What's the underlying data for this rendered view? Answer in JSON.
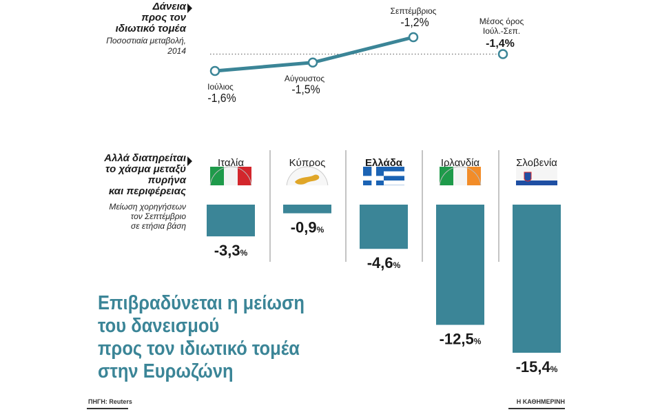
{
  "line_panel": {
    "title_lines": [
      "Δάνεια",
      "προς τον",
      "ιδιωτικό τομέα"
    ],
    "subtitle_lines": [
      "Ποσοστιαία μεταβολή,",
      "2014"
    ]
  },
  "bar_panel": {
    "title_lines": [
      "Αλλά διατηρείται",
      "το χάσμα μεταξύ",
      "πυρήνα",
      "και περιφέρειας"
    ],
    "subtitle_lines": [
      "Μείωση χορηγήσεων",
      "τον Σεπτέμβριο",
      "σε ετήσια βάση"
    ]
  },
  "headline_lines": [
    "Επιβραδύνεται η μείωση",
    "του δανεισμού",
    "προς τον ιδιωτικό τομέα",
    "στην Ευρωζώνη"
  ],
  "footer": {
    "source": "ΠΗΓΗ: Reuters",
    "publisher": "Η ΚΑΘΗΜΕΡΙΝΗ"
  },
  "colors": {
    "accent": "#3b8597",
    "text": "#1a1a1a"
  },
  "chart_data": [
    {
      "type": "line",
      "categories": [
        "Ιούλιος",
        "Αύγουστος",
        "Σεπτέμβριος"
      ],
      "values": [
        -1.6,
        -1.5,
        -1.2
      ],
      "value_labels": [
        "-1,6%",
        "-1,5%",
        "-1,2%"
      ],
      "reference": {
        "label_lines": [
          "Μέσος όρος",
          "Ιούλ.-Σεπ."
        ],
        "value": -1.4,
        "value_label": "-1,4%"
      }
    },
    {
      "type": "bar",
      "categories": [
        "Ιταλία",
        "Κύπρος",
        "Ελλάδα",
        "Ιρλανδία",
        "Σλοβενία"
      ],
      "values": [
        -3.3,
        -0.9,
        -4.6,
        -12.5,
        -15.4
      ],
      "value_labels": [
        "-3,3%",
        "-0,9%",
        "-4,6%",
        "-12,5%",
        "-15,4%"
      ],
      "flags": [
        "italy-flag",
        "cyprus-flag",
        "greece-flag",
        "ireland-flag",
        "slovenia-flag"
      ],
      "highlight": "Ελλάδα"
    }
  ]
}
